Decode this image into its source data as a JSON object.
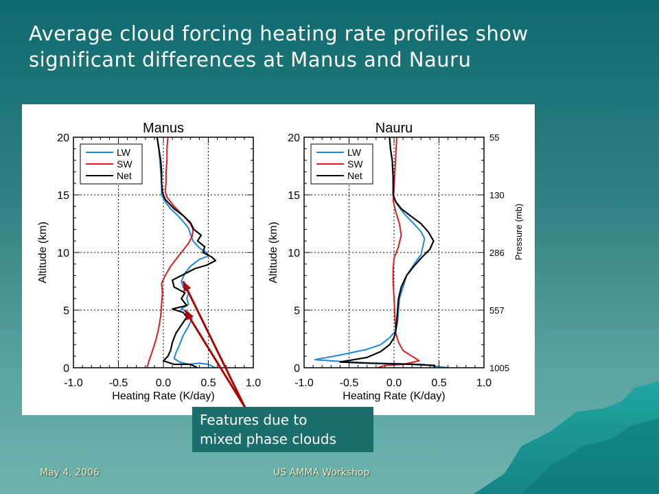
{
  "slide": {
    "title_line1": "Average cloud forcing heating rate profiles show",
    "title_line2": "significant differences at Manus and Nauru",
    "callout_line1": "Features due to",
    "callout_line2": "mixed phase clouds",
    "footer_date": "May 4, 2006",
    "footer_event": "US AMMA Workshop"
  },
  "colors": {
    "lw": "#1a86e0",
    "sw": "#e01818",
    "net": "#000000",
    "arrow": "#b00000"
  },
  "chart_data": [
    {
      "type": "line",
      "title": "Manus",
      "xlabel": "Heating Rate (K/day)",
      "ylabel": "Altitude (km)",
      "xlim": [
        -1.0,
        1.0
      ],
      "ylim": [
        0,
        20
      ],
      "xticks": [
        "-1.0",
        "-0.5",
        "0.0",
        "0.5",
        "1.0"
      ],
      "yticks": [
        "0",
        "5",
        "10",
        "15",
        "20"
      ],
      "grid": true,
      "legend_placement": "top-left",
      "series": [
        {
          "name": "LW",
          "points": [
            [
              0.58,
              0.0
            ],
            [
              0.5,
              0.3
            ],
            [
              0.4,
              0.4
            ],
            [
              0.28,
              0.3
            ],
            [
              0.18,
              0.5
            ],
            [
              0.12,
              0.8
            ],
            [
              0.14,
              1.3
            ],
            [
              0.18,
              2.0
            ],
            [
              0.22,
              2.8
            ],
            [
              0.28,
              3.6
            ],
            [
              0.32,
              4.3
            ],
            [
              0.28,
              4.8
            ],
            [
              0.2,
              5.1
            ],
            [
              0.28,
              5.5
            ],
            [
              0.26,
              6.0
            ],
            [
              0.28,
              6.5
            ],
            [
              0.22,
              7.0
            ],
            [
              0.2,
              7.5
            ],
            [
              0.24,
              8.2
            ],
            [
              0.3,
              8.8
            ],
            [
              0.4,
              9.4
            ],
            [
              0.5,
              9.7
            ],
            [
              0.48,
              10.0
            ],
            [
              0.4,
              10.4
            ],
            [
              0.33,
              11.0
            ],
            [
              0.3,
              11.6
            ],
            [
              0.28,
              12.1
            ],
            [
              0.23,
              12.6
            ],
            [
              0.16,
              13.2
            ],
            [
              0.08,
              13.8
            ],
            [
              0.02,
              14.4
            ],
            [
              -0.02,
              15.0
            ],
            [
              -0.02,
              16.0
            ],
            [
              -0.03,
              17.0
            ],
            [
              -0.04,
              18.0
            ],
            [
              -0.05,
              19.0
            ],
            [
              -0.07,
              20.0
            ]
          ]
        },
        {
          "name": "SW",
          "points": [
            [
              -0.18,
              0.0
            ],
            [
              -0.16,
              0.6
            ],
            [
              -0.12,
              1.5
            ],
            [
              -0.08,
              2.5
            ],
            [
              -0.05,
              3.5
            ],
            [
              -0.03,
              4.5
            ],
            [
              -0.02,
              5.5
            ],
            [
              -0.01,
              6.5
            ],
            [
              -0.02,
              7.3
            ],
            [
              0.02,
              8.0
            ],
            [
              0.08,
              8.8
            ],
            [
              0.15,
              9.5
            ],
            [
              0.22,
              10.2
            ],
            [
              0.28,
              10.8
            ],
            [
              0.32,
              11.4
            ],
            [
              0.33,
              12.0
            ],
            [
              0.3,
              12.5
            ],
            [
              0.22,
              13.2
            ],
            [
              0.12,
              14.0
            ],
            [
              0.04,
              14.8
            ],
            [
              0.02,
              15.3
            ],
            [
              0.03,
              16.0
            ],
            [
              0.03,
              17.0
            ],
            [
              0.04,
              18.0
            ],
            [
              0.04,
              19.0
            ],
            [
              0.05,
              20.0
            ]
          ]
        },
        {
          "name": "Net",
          "points": [
            [
              0.38,
              0.0
            ],
            [
              0.3,
              0.3
            ],
            [
              0.12,
              0.3
            ],
            [
              0.0,
              0.6
            ],
            [
              0.05,
              1.0
            ],
            [
              0.08,
              1.5
            ],
            [
              0.1,
              2.2
            ],
            [
              0.14,
              3.0
            ],
            [
              0.2,
              3.7
            ],
            [
              0.26,
              4.4
            ],
            [
              0.22,
              4.8
            ],
            [
              0.1,
              5.1
            ],
            [
              0.26,
              5.4
            ],
            [
              0.2,
              6.0
            ],
            [
              0.24,
              6.5
            ],
            [
              0.12,
              7.0
            ],
            [
              0.1,
              7.6
            ],
            [
              0.2,
              8.0
            ],
            [
              0.35,
              8.6
            ],
            [
              0.48,
              8.9
            ],
            [
              0.58,
              9.3
            ],
            [
              0.54,
              9.6
            ],
            [
              0.44,
              10.0
            ],
            [
              0.46,
              10.5
            ],
            [
              0.38,
              11.0
            ],
            [
              0.42,
              11.5
            ],
            [
              0.34,
              12.0
            ],
            [
              0.3,
              12.6
            ],
            [
              0.22,
              13.2
            ],
            [
              0.12,
              13.8
            ],
            [
              0.02,
              14.6
            ],
            [
              -0.01,
              15.2
            ],
            [
              -0.02,
              16.0
            ],
            [
              -0.02,
              17.0
            ],
            [
              -0.03,
              18.0
            ],
            [
              -0.05,
              19.0
            ],
            [
              -0.07,
              20.0
            ]
          ]
        }
      ]
    },
    {
      "type": "line",
      "title": "Nauru",
      "xlabel": "Heating Rate (K/day)",
      "ylabel": "Altitude (km)",
      "y2label": "Pressure (mb)",
      "xlim": [
        -1.0,
        1.0
      ],
      "ylim": [
        0,
        20
      ],
      "xticks": [
        "-1.0",
        "-0.5",
        "0.0",
        "0.5",
        "1.0"
      ],
      "yticks": [
        "0",
        "5",
        "10",
        "15",
        "20"
      ],
      "y2ticks": [
        {
          "km": 0,
          "label": "1005"
        },
        {
          "km": 5,
          "label": "557"
        },
        {
          "km": 10,
          "label": "286"
        },
        {
          "km": 15,
          "label": "130"
        },
        {
          "km": 20,
          "label": "55"
        }
      ],
      "grid": true,
      "legend_placement": "top-left",
      "series": [
        {
          "name": "LW",
          "points": [
            [
              0.6,
              0.0
            ],
            [
              0.3,
              0.3
            ],
            [
              -0.2,
              0.4
            ],
            [
              -0.5,
              0.5
            ],
            [
              -0.88,
              0.7
            ],
            [
              -0.6,
              1.1
            ],
            [
              -0.3,
              1.6
            ],
            [
              -0.15,
              2.0
            ],
            [
              -0.05,
              2.6
            ],
            [
              0.02,
              3.2
            ],
            [
              0.04,
              4.0
            ],
            [
              0.05,
              5.0
            ],
            [
              0.06,
              6.0
            ],
            [
              0.1,
              7.0
            ],
            [
              0.14,
              8.0
            ],
            [
              0.2,
              8.7
            ],
            [
              0.25,
              9.3
            ],
            [
              0.3,
              9.8
            ],
            [
              0.32,
              10.5
            ],
            [
              0.34,
              11.2
            ],
            [
              0.3,
              11.8
            ],
            [
              0.22,
              12.5
            ],
            [
              0.12,
              13.3
            ],
            [
              0.05,
              14.0
            ],
            [
              0.0,
              14.6
            ],
            [
              -0.01,
              15.3
            ],
            [
              -0.01,
              16.5
            ],
            [
              -0.02,
              18.0
            ],
            [
              -0.04,
              19.0
            ],
            [
              -0.05,
              20.0
            ]
          ]
        },
        {
          "name": "SW",
          "points": [
            [
              -0.18,
              0.0
            ],
            [
              -0.1,
              0.2
            ],
            [
              0.1,
              0.3
            ],
            [
              0.28,
              0.6
            ],
            [
              0.2,
              1.0
            ],
            [
              0.1,
              1.5
            ],
            [
              0.05,
              2.2
            ],
            [
              0.02,
              3.0
            ],
            [
              0.01,
              4.5
            ],
            [
              0.0,
              6.0
            ],
            [
              -0.01,
              7.5
            ],
            [
              -0.01,
              8.5
            ],
            [
              0.0,
              9.5
            ],
            [
              0.05,
              10.5
            ],
            [
              0.08,
              11.5
            ],
            [
              0.06,
              12.5
            ],
            [
              0.02,
              13.5
            ],
            [
              -0.01,
              14.5
            ],
            [
              0.0,
              15.5
            ],
            [
              0.01,
              17.0
            ],
            [
              0.02,
              18.5
            ],
            [
              0.03,
              20.0
            ]
          ]
        },
        {
          "name": "Net",
          "points": [
            [
              0.45,
              0.0
            ],
            [
              0.45,
              0.2
            ],
            [
              0.2,
              0.3
            ],
            [
              -0.3,
              0.4
            ],
            [
              -0.6,
              0.5
            ],
            [
              -0.3,
              0.9
            ],
            [
              -0.15,
              1.4
            ],
            [
              -0.05,
              2.0
            ],
            [
              0.0,
              2.6
            ],
            [
              0.02,
              3.2
            ],
            [
              0.03,
              4.0
            ],
            [
              0.04,
              5.0
            ],
            [
              0.05,
              6.0
            ],
            [
              0.08,
              7.0
            ],
            [
              0.14,
              8.0
            ],
            [
              0.22,
              8.8
            ],
            [
              0.3,
              9.5
            ],
            [
              0.4,
              10.3
            ],
            [
              0.44,
              11.0
            ],
            [
              0.38,
              11.8
            ],
            [
              0.3,
              12.5
            ],
            [
              0.18,
              13.2
            ],
            [
              0.08,
              13.8
            ],
            [
              0.02,
              14.4
            ],
            [
              -0.01,
              15.0
            ],
            [
              -0.01,
              16.5
            ],
            [
              -0.02,
              18.0
            ],
            [
              -0.04,
              19.0
            ],
            [
              -0.05,
              20.0
            ]
          ]
        }
      ]
    }
  ]
}
